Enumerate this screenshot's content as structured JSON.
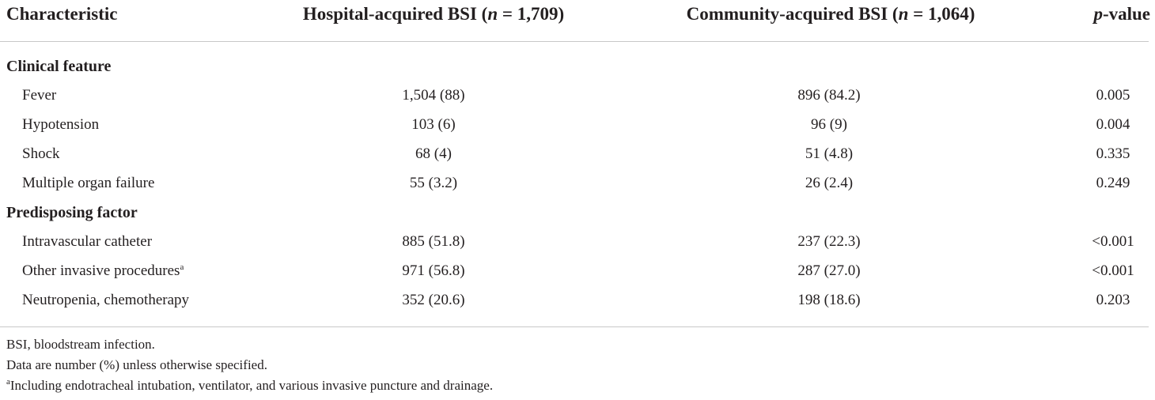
{
  "header": {
    "col1": "Characteristic",
    "col2_prefix": "Hospital-acquired BSI (",
    "col2_n": "n",
    "col2_suffix": " = 1,709)",
    "col3_prefix": "Community-acquired BSI (",
    "col3_n": "n",
    "col3_suffix": " = 1,064)",
    "col4_p": "p",
    "col4_suffix": "-value"
  },
  "sections": [
    {
      "title": "Clinical feature",
      "rows": [
        {
          "label": "Fever",
          "sup": "",
          "hospital": "1,504 (88)",
          "community": "896 (84.2)",
          "p": "0.005"
        },
        {
          "label": "Hypotension",
          "sup": "",
          "hospital": "103 (6)",
          "community": "96 (9)",
          "p": "0.004"
        },
        {
          "label": "Shock",
          "sup": "",
          "hospital": "68 (4)",
          "community": "51 (4.8)",
          "p": "0.335"
        },
        {
          "label": "Multiple organ failure",
          "sup": "",
          "hospital": "55 (3.2)",
          "community": "26 (2.4)",
          "p": "0.249"
        }
      ]
    },
    {
      "title": "Predisposing factor",
      "rows": [
        {
          "label": "Intravascular catheter",
          "sup": "",
          "hospital": "885 (51.8)",
          "community": "237 (22.3)",
          "p": "<0.001"
        },
        {
          "label": "Other invasive procedures",
          "sup": "a",
          "hospital": "971 (56.8)",
          "community": "287 (27.0)",
          "p": "<0.001"
        },
        {
          "label": "Neutropenia, chemotherapy",
          "sup": "",
          "hospital": "352 (20.6)",
          "community": "198 (18.6)",
          "p": "0.203"
        }
      ]
    }
  ],
  "footnotes": {
    "abbrev": "BSI, bloodstream infection.",
    "data_note": "Data are number (%) unless otherwise specified.",
    "a_mark": "a",
    "a_text": "Including endotracheal intubation, ventilator, and various invasive puncture and drainage."
  }
}
